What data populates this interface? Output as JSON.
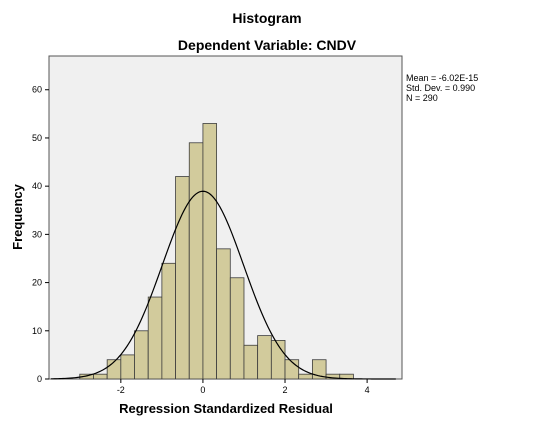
{
  "chart_data": {
    "type": "bar",
    "title": "Histogram",
    "subtitle": "Dependent Variable: CNDV",
    "xlabel": "Regression Standardized Residual",
    "ylabel": "Frequency",
    "xlim": [
      -3.75,
      4.85
    ],
    "ylim": [
      0,
      67
    ],
    "x_ticks": [
      -2,
      0,
      2,
      4
    ],
    "y_ticks": [
      0,
      10,
      20,
      30,
      40,
      50,
      60
    ],
    "bin_width": 0.3333,
    "bins": [
      {
        "start": -3.0,
        "count": 1
      },
      {
        "start": -2.667,
        "count": 1
      },
      {
        "start": -2.333,
        "count": 4
      },
      {
        "start": -2.0,
        "count": 5
      },
      {
        "start": -1.667,
        "count": 10
      },
      {
        "start": -1.333,
        "count": 17
      },
      {
        "start": -1.0,
        "count": 24
      },
      {
        "start": -0.667,
        "count": 42
      },
      {
        "start": -0.333,
        "count": 49
      },
      {
        "start": 0.0,
        "count": 53
      },
      {
        "start": 0.333,
        "count": 27
      },
      {
        "start": 0.667,
        "count": 21
      },
      {
        "start": 1.0,
        "count": 7
      },
      {
        "start": 1.333,
        "count": 9
      },
      {
        "start": 1.667,
        "count": 8
      },
      {
        "start": 2.0,
        "count": 4
      },
      {
        "start": 2.333,
        "count": 1
      },
      {
        "start": 2.667,
        "count": 4
      },
      {
        "start": 3.0,
        "count": 1
      },
      {
        "start": 3.333,
        "count": 1
      }
    ],
    "normal_curve": {
      "mean": 0,
      "std": 0.99,
      "n": 290
    },
    "stats": {
      "mean": "Mean = -6.02E-15",
      "std": "Std. Dev. = 0.990",
      "n": "N = 290"
    },
    "grid": false,
    "legend": "none",
    "colors": {
      "bar_fill": "#d2cb9c",
      "bar_stroke": "#3c3c3c",
      "plot_bg": "#f0f0f0",
      "curve": "#000000"
    }
  }
}
